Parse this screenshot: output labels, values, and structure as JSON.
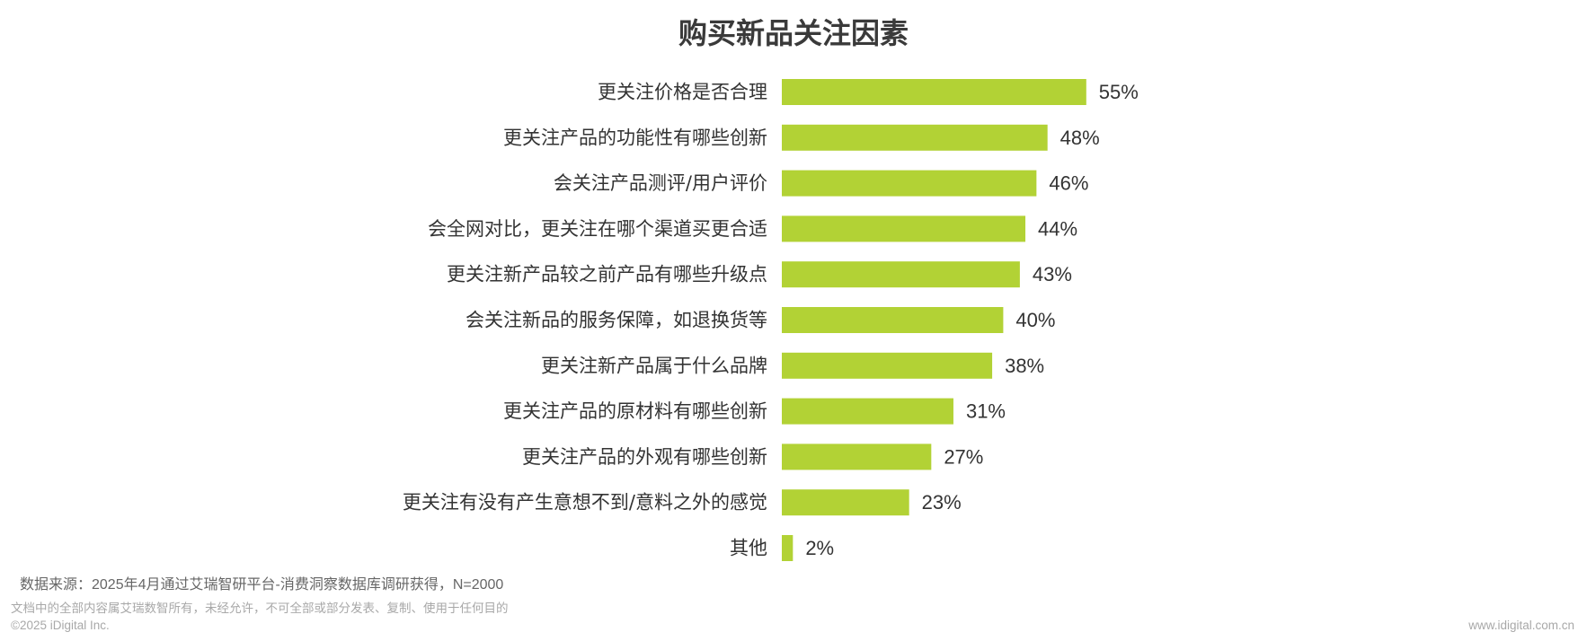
{
  "chart_data": {
    "type": "bar",
    "orientation": "horizontal",
    "title": "购买新品关注因素",
    "categories": [
      "更关注价格是否合理",
      "更关注产品的功能性有哪些创新",
      "会关注产品测评/用户评价",
      "会全网对比，更关注在哪个渠道买更合适",
      "更关注新产品较之前产品有哪些升级点",
      "会关注新品的服务保障，如退换货等",
      "更关注新产品属于什么品牌",
      "更关注产品的原材料有哪些创新",
      "更关注产品的外观有哪些创新",
      "更关注有没有产生意想不到/意料之外的感觉",
      "其他"
    ],
    "values": [
      55,
      48,
      46,
      44,
      43,
      40,
      38,
      31,
      27,
      23,
      2
    ],
    "value_labels": [
      "55%",
      "48%",
      "46%",
      "44%",
      "43%",
      "40%",
      "38%",
      "31%",
      "27%",
      "23%",
      "2%"
    ],
    "unit": "%",
    "bar_color": "#b2d235",
    "grid": false,
    "legend": "none"
  },
  "footer": {
    "source": "数据来源：2025年4月通过艾瑞智研平台-消费洞察数据库调研获得，N=2000",
    "disclaimer": "文档中的全部内容属艾瑞数智所有，未经允许，不可全部或部分发表、复制、使用于任何目的",
    "copyright": "©2025 iDigital Inc.",
    "website": "www.idigital.com.cn"
  }
}
